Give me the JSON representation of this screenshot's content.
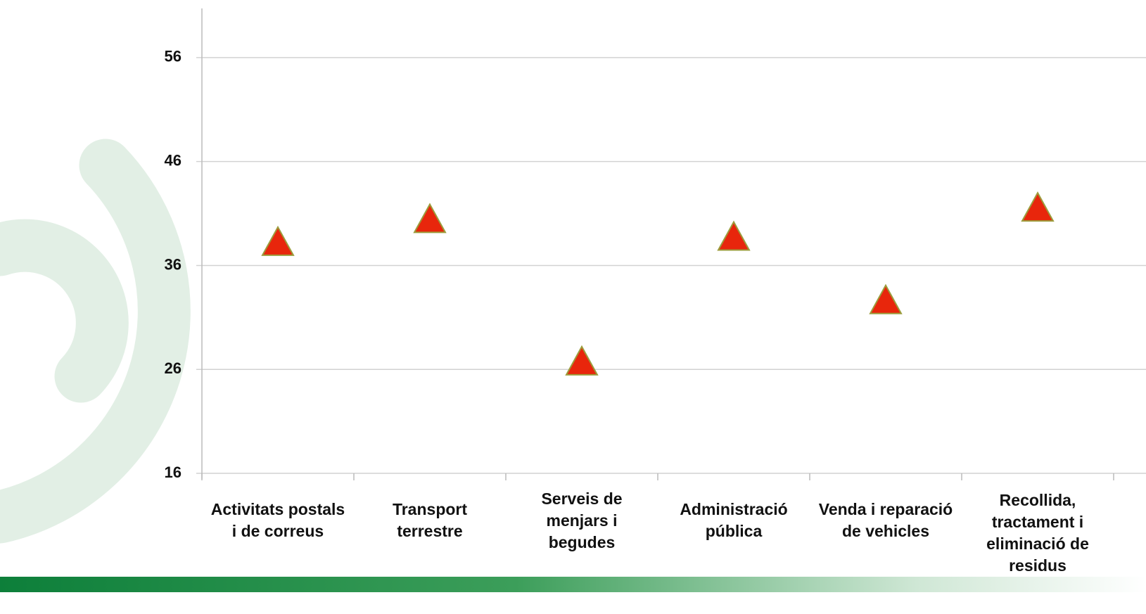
{
  "chart_data": {
    "type": "scatter",
    "categories": [
      "Activitats postals i de correus",
      "Transport terrestre",
      "Serveis de menjars i begudes",
      "Administració pública",
      "Venda i reparació de vehicles",
      "Recollida, tractament i eliminació de residus"
    ],
    "values": [
      38.2,
      40.4,
      26.7,
      38.7,
      32.6,
      41.5
    ],
    "color": "#e8260c",
    "ylim": [
      16,
      61
    ],
    "yticks": [
      16,
      26,
      36,
      46,
      56
    ],
    "grid": true
  }
}
